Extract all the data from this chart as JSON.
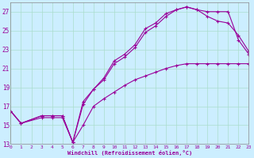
{
  "xlabel": "Windchill (Refroidissement éolien,°C)",
  "bg_color": "#cceeff",
  "grid_color": "#aaddcc",
  "line_color": "#990099",
  "ylim": [
    13,
    28
  ],
  "xlim": [
    0,
    23
  ],
  "yticks": [
    13,
    15,
    17,
    19,
    21,
    23,
    25,
    27
  ],
  "xticks": [
    0,
    1,
    2,
    3,
    4,
    5,
    6,
    7,
    8,
    9,
    10,
    11,
    12,
    13,
    14,
    15,
    16,
    17,
    18,
    19,
    20,
    21,
    22,
    23
  ],
  "line1_x": [
    0,
    1,
    3,
    4,
    5,
    6,
    7,
    8,
    9,
    10,
    11,
    12,
    13,
    14,
    15,
    16,
    17,
    18,
    19,
    20,
    21,
    22,
    23
  ],
  "line1_y": [
    16.5,
    15.2,
    15.8,
    15.8,
    15.8,
    13.2,
    15.0,
    17.0,
    17.8,
    18.5,
    19.2,
    19.8,
    20.2,
    20.6,
    21.0,
    21.3,
    21.5,
    21.5,
    21.5,
    21.5,
    21.5,
    21.5,
    21.5
  ],
  "line2_x": [
    0,
    1,
    3,
    4,
    5,
    6,
    7,
    8,
    9,
    10,
    11,
    12,
    13,
    14,
    15,
    16,
    17,
    18,
    19,
    20,
    21,
    22,
    23
  ],
  "line2_y": [
    16.5,
    15.2,
    16.0,
    16.0,
    16.0,
    13.2,
    17.2,
    18.8,
    19.8,
    21.5,
    22.2,
    23.2,
    24.8,
    25.5,
    26.5,
    27.2,
    27.5,
    27.2,
    26.5,
    26.0,
    25.8,
    24.5,
    22.8
  ],
  "line3_x": [
    0,
    1,
    3,
    4,
    5,
    6,
    7,
    8,
    9,
    10,
    11,
    12,
    13,
    14,
    15,
    16,
    17,
    18,
    19,
    20,
    21,
    22,
    23
  ],
  "line3_y": [
    16.5,
    15.2,
    16.0,
    16.0,
    16.0,
    13.2,
    17.5,
    18.8,
    20.0,
    21.8,
    22.5,
    23.5,
    25.2,
    25.8,
    26.8,
    27.2,
    27.5,
    27.2,
    27.0,
    27.0,
    27.0,
    24.0,
    22.5
  ]
}
